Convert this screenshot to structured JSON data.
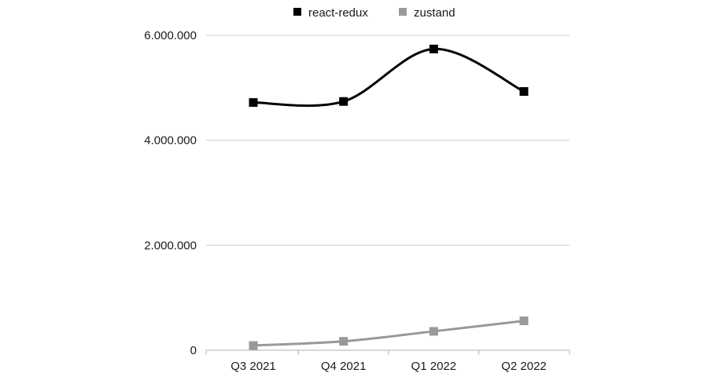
{
  "chart_data": {
    "type": "line",
    "title": "",
    "xlabel": "",
    "ylabel": "",
    "categories": [
      "Q3 2021",
      "Q4 2021",
      "Q1 2022",
      "Q2 2022"
    ],
    "series": [
      {
        "name": "react-redux",
        "values": [
          4720000,
          4740000,
          5740000,
          4930000
        ],
        "color": "#000000",
        "marker": "square",
        "smooth": true
      },
      {
        "name": "zustand",
        "values": [
          90000,
          170000,
          360000,
          560000
        ],
        "color": "#999999",
        "marker": "square",
        "smooth": true
      }
    ],
    "y_ticks": [
      {
        "value": 0,
        "label": "0"
      },
      {
        "value": 2000000,
        "label": "2.000.000"
      },
      {
        "value": 4000000,
        "label": "4.000.000"
      },
      {
        "value": 6000000,
        "label": "6.000.000"
      }
    ],
    "ylim": [
      0,
      6000000
    ],
    "grid": true,
    "legend_position": "top-center"
  }
}
